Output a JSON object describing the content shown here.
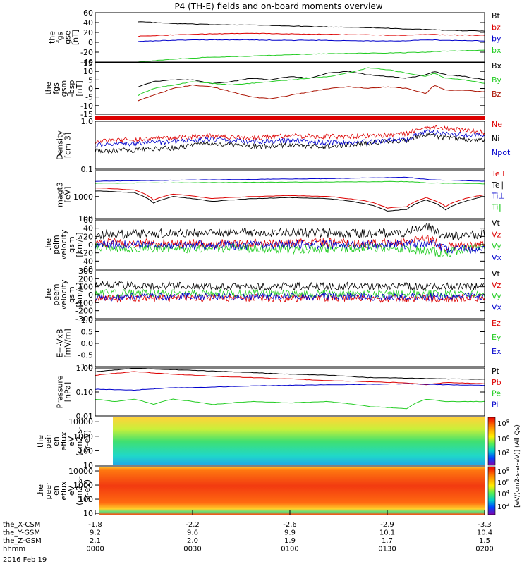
{
  "title": "P4 (TH-E) fields and on-board moments overview",
  "date_label": "2016 Feb 19",
  "colorbar_label": "[eV/(cm2-s-sr-eV)] (All Qs)",
  "colorbar_ticks": [
    "10^8",
    "10^6",
    "10^4",
    "10^2"
  ],
  "colors": {
    "black": "#000000",
    "red": "#dd0000",
    "green": "#22cc22",
    "blue": "#0000cc",
    "darkred": "#aa1100"
  },
  "xaxis": {
    "tick_times": [
      "0000",
      "0030",
      "0100",
      "0130",
      "0200"
    ],
    "rows": [
      {
        "label": "the_X-CSM",
        "values": [
          "-1.8",
          "-2.2",
          "-2.6",
          "-2.9",
          "-3.3"
        ]
      },
      {
        "label": "the_Y-GSM",
        "values": [
          "9.2",
          "9.6",
          "9.9",
          "10.1",
          "10.4"
        ]
      },
      {
        "label": "the_Z-GSM",
        "values": [
          "2.1",
          "2.0",
          "1.9",
          "1.7",
          "1.5"
        ]
      },
      {
        "label": "hhmm",
        "values": [
          "0000",
          "0030",
          "0100",
          "0130",
          "0200"
        ]
      }
    ]
  },
  "chart_data": [
    {
      "type": "line",
      "ylabel": [
        "the",
        "fgs",
        "gse",
        "[nT]"
      ],
      "ylim": [
        -40,
        60
      ],
      "yticks": [
        "60",
        "40",
        "20",
        "0",
        "-20",
        "-40"
      ],
      "legend": [
        "Bt",
        "bz",
        "by",
        "bx"
      ],
      "series": [
        {
          "name": "Bt",
          "color": "black",
          "x": [
            0.11,
            0.2,
            0.3,
            0.4,
            0.5,
            0.6,
            0.7,
            0.8,
            0.85,
            0.9,
            1.0
          ],
          "y": [
            42,
            38,
            36,
            35,
            33,
            31,
            30,
            27,
            26,
            24,
            23
          ]
        },
        {
          "name": "bz",
          "color": "red",
          "x": [
            0.11,
            0.2,
            0.3,
            0.4,
            0.5,
            0.6,
            0.7,
            0.8,
            0.85,
            0.9,
            1.0
          ],
          "y": [
            12,
            15,
            17,
            18,
            17,
            16,
            15,
            14,
            16,
            15,
            14
          ]
        },
        {
          "name": "by",
          "color": "blue",
          "x": [
            0.11,
            0.2,
            0.3,
            0.4,
            0.5,
            0.6,
            0.7,
            0.8,
            0.85,
            0.9,
            1.0
          ],
          "y": [
            2,
            4,
            5,
            5,
            4,
            4,
            3,
            3,
            5,
            4,
            3
          ]
        },
        {
          "name": "bx",
          "color": "green",
          "x": [
            0.11,
            0.2,
            0.3,
            0.4,
            0.5,
            0.6,
            0.7,
            0.8,
            0.85,
            0.9,
            1.0
          ],
          "y": [
            -40,
            -34,
            -30,
            -28,
            -25,
            -23,
            -22,
            -21,
            -20,
            -18,
            -16
          ]
        }
      ]
    },
    {
      "type": "line",
      "ylabel": [
        "the",
        "fgs",
        "gsm",
        "-bsp",
        "[nT]"
      ],
      "ylim": [
        -15,
        15
      ],
      "yticks": [
        "15",
        "10",
        "5",
        "0",
        "-5",
        "-10",
        "-15"
      ],
      "legend": [
        "Bx",
        "By",
        "Bz"
      ],
      "series": [
        {
          "name": "Bx",
          "color": "black",
          "x": [
            0.11,
            0.15,
            0.2,
            0.25,
            0.3,
            0.35,
            0.4,
            0.45,
            0.5,
            0.55,
            0.6,
            0.65,
            0.7,
            0.75,
            0.8,
            0.85,
            0.87,
            0.9,
            0.95,
            1.0
          ],
          "y": [
            1,
            4,
            5,
            5,
            3,
            4,
            6,
            5,
            7,
            6,
            9,
            10,
            8,
            7,
            6,
            8,
            10,
            8,
            7,
            5
          ]
        },
        {
          "name": "By",
          "color": "green",
          "x": [
            0.11,
            0.15,
            0.2,
            0.25,
            0.3,
            0.35,
            0.4,
            0.45,
            0.5,
            0.55,
            0.6,
            0.65,
            0.7,
            0.75,
            0.8,
            0.85,
            0.87,
            0.9,
            0.95,
            1.0
          ],
          "y": [
            -4,
            0,
            2,
            4,
            3,
            2,
            3,
            4,
            5,
            6,
            7,
            9,
            12,
            11,
            9,
            7,
            9,
            6,
            5,
            3
          ]
        },
        {
          "name": "Bz",
          "color": "darkred",
          "x": [
            0.11,
            0.15,
            0.2,
            0.25,
            0.3,
            0.35,
            0.4,
            0.45,
            0.5,
            0.55,
            0.6,
            0.65,
            0.7,
            0.75,
            0.8,
            0.85,
            0.87,
            0.9,
            0.95,
            1.0
          ],
          "y": [
            -7,
            -4,
            0,
            2,
            1,
            -2,
            -5,
            -6,
            -4,
            -2,
            0,
            1,
            0,
            1,
            0,
            -3,
            2,
            -1,
            -1,
            -2
          ]
        }
      ]
    },
    {
      "type": "line",
      "ylabel": [
        "Density",
        "[cm-3]"
      ],
      "yscale": "log",
      "ylim": [
        0.1,
        1.0
      ],
      "yticks": [
        "1.0",
        "0.1"
      ],
      "legend": [
        "Ne",
        "Ni",
        "Npot"
      ],
      "series": [
        {
          "name": "Ne",
          "color": "red",
          "x": [
            0.0,
            0.1,
            0.2,
            0.3,
            0.4,
            0.5,
            0.6,
            0.7,
            0.8,
            0.85,
            0.9,
            1.0
          ],
          "y": [
            0.38,
            0.42,
            0.45,
            0.5,
            0.45,
            0.5,
            0.48,
            0.5,
            0.55,
            0.75,
            0.7,
            0.6
          ]
        },
        {
          "name": "Ni",
          "color": "black",
          "x": [
            0.0,
            0.1,
            0.2,
            0.3,
            0.4,
            0.5,
            0.6,
            0.7,
            0.8,
            0.85,
            0.9,
            1.0
          ],
          "y": [
            0.25,
            0.25,
            0.28,
            0.35,
            0.3,
            0.32,
            0.3,
            0.35,
            0.4,
            0.55,
            0.45,
            0.4
          ]
        },
        {
          "name": "Npot",
          "color": "blue",
          "x": [
            0.0,
            0.1,
            0.2,
            0.3,
            0.4,
            0.5,
            0.6,
            0.7,
            0.8,
            0.85,
            0.9,
            1.0
          ],
          "y": [
            0.32,
            0.35,
            0.38,
            0.42,
            0.38,
            0.4,
            0.36,
            0.38,
            0.42,
            0.6,
            0.55,
            0.5
          ]
        }
      ]
    },
    {
      "type": "line",
      "ylabel": [
        "magt3",
        "[eV]"
      ],
      "yscale": "log",
      "ylim": [
        100,
        15000
      ],
      "yticks": [
        "1000",
        "100"
      ],
      "legend": [
        "Te⊥",
        "Te∥",
        "Ti⊥",
        "Ti∥"
      ],
      "series": [
        {
          "name": "Te⊥",
          "color": "red",
          "x": [
            0.0,
            0.1,
            0.15,
            0.2,
            0.3,
            0.4,
            0.5,
            0.6,
            0.7,
            0.75,
            0.8,
            0.85,
            0.9,
            0.95,
            1.0
          ],
          "y": [
            2500,
            2000,
            700,
            1300,
            800,
            1000,
            1100,
            1000,
            600,
            300,
            350,
            900,
            350,
            800,
            1200
          ]
        },
        {
          "name": "Te∥",
          "color": "black",
          "x": [
            0.0,
            0.1,
            0.15,
            0.2,
            0.3,
            0.4,
            0.5,
            0.6,
            0.7,
            0.75,
            0.8,
            0.85,
            0.9,
            0.95,
            1.0
          ],
          "y": [
            1800,
            1500,
            500,
            1000,
            600,
            800,
            900,
            800,
            450,
            220,
            260,
            700,
            250,
            600,
            1000
          ]
        },
        {
          "name": "Ti⊥",
          "color": "blue",
          "x": [
            0.0,
            0.2,
            0.4,
            0.6,
            0.8,
            0.85,
            0.9,
            1.0
          ],
          "y": [
            5000,
            5500,
            6000,
            6500,
            7500,
            6000,
            5500,
            5000
          ]
        },
        {
          "name": "Ti∥",
          "color": "green",
          "x": [
            0.0,
            0.2,
            0.4,
            0.6,
            0.8,
            0.85,
            0.9,
            1.0
          ],
          "y": [
            4000,
            4200,
            4400,
            4600,
            4800,
            4200,
            4000,
            3800
          ]
        }
      ]
    },
    {
      "type": "line",
      "ylabel": [
        "the",
        "peim",
        "velocity",
        "gsm",
        "[km/s]"
      ],
      "ylim": [
        -60,
        60
      ],
      "yticks": [
        "60",
        "40",
        "20",
        "0",
        "-20",
        "-40",
        "-60"
      ],
      "legend": [
        "Vt",
        "Vz",
        "Vy",
        "Vx"
      ],
      "series": [
        {
          "name": "Vt",
          "color": "black",
          "x": [
            0.0,
            0.2,
            0.4,
            0.5,
            0.6,
            0.7,
            0.8,
            0.85,
            0.9,
            1.0
          ],
          "y": [
            25,
            28,
            30,
            30,
            28,
            27,
            30,
            45,
            20,
            25
          ]
        },
        {
          "name": "Vz",
          "color": "red",
          "x": [
            0.0,
            0.2,
            0.4,
            0.5,
            0.6,
            0.7,
            0.8,
            0.85,
            0.9,
            1.0
          ],
          "y": [
            5,
            3,
            2,
            4,
            5,
            3,
            5,
            15,
            -5,
            0
          ]
        },
        {
          "name": "Vy",
          "color": "green",
          "x": [
            0.0,
            0.2,
            0.4,
            0.5,
            0.6,
            0.7,
            0.8,
            0.85,
            0.9,
            1.0
          ],
          "y": [
            -5,
            -10,
            -8,
            -12,
            -10,
            -8,
            -10,
            -15,
            -20,
            -5
          ]
        },
        {
          "name": "Vx",
          "color": "blue",
          "x": [
            0.0,
            0.2,
            0.4,
            0.5,
            0.6,
            0.7,
            0.8,
            0.85,
            0.9,
            1.0
          ],
          "y": [
            0,
            0,
            -2,
            0,
            0,
            0,
            0,
            5,
            -10,
            -10
          ]
        }
      ]
    },
    {
      "type": "line",
      "ylabel": [
        "the",
        "peem",
        "velocity",
        "gsm",
        "[km/s]"
      ],
      "ylim": [
        -300,
        300
      ],
      "yticks": [
        "300",
        "200",
        "100",
        "0",
        "-100",
        "-200",
        "-300"
      ],
      "legend": [
        "Vt",
        "Vz",
        "Vy",
        "Vx"
      ],
      "series": [
        {
          "name": "Vt",
          "color": "black",
          "x": [
            0.0,
            0.2,
            0.4,
            0.6,
            0.8,
            1.0
          ],
          "y": [
            120,
            110,
            100,
            110,
            105,
            100
          ]
        },
        {
          "name": "Vz",
          "color": "red",
          "x": [
            0.0,
            0.2,
            0.4,
            0.6,
            0.8,
            1.0
          ],
          "y": [
            -50,
            -40,
            -45,
            -40,
            -50,
            -40
          ]
        },
        {
          "name": "Vy",
          "color": "green",
          "x": [
            0.0,
            0.2,
            0.4,
            0.6,
            0.8,
            1.0
          ],
          "y": [
            20,
            15,
            20,
            10,
            15,
            10
          ]
        },
        {
          "name": "Vx",
          "color": "blue",
          "x": [
            0.0,
            0.2,
            0.4,
            0.6,
            0.8,
            1.0
          ],
          "y": [
            -30,
            -20,
            -25,
            -20,
            -30,
            -20
          ]
        }
      ]
    },
    {
      "type": "line",
      "ylabel": [
        "E=-VxB",
        "[mV/m]"
      ],
      "ylim": [
        -1.0,
        1.0
      ],
      "yticks": [
        "1.0",
        "0.5",
        "0.0",
        "-0.5",
        "-1.0"
      ],
      "legend": [
        "Ez",
        "Ey",
        "Ex"
      ],
      "series": []
    },
    {
      "type": "line",
      "ylabel": [
        "Pressure",
        "[nPa]"
      ],
      "yscale": "log",
      "ylim": [
        0.01,
        1.0
      ],
      "yticks": [
        "1.00",
        "0.10",
        "0.01"
      ],
      "legend": [
        "Pt",
        "Pb",
        "Pe",
        "Pi"
      ],
      "series": [
        {
          "name": "Pt",
          "color": "black",
          "x": [
            0.0,
            0.1,
            0.2,
            0.3,
            0.4,
            0.5,
            0.6,
            0.7,
            0.8,
            0.9,
            1.0
          ],
          "y": [
            0.7,
            0.95,
            0.85,
            0.75,
            0.65,
            0.55,
            0.5,
            0.4,
            0.38,
            0.35,
            0.34
          ]
        },
        {
          "name": "Pb",
          "color": "red",
          "x": [
            0.0,
            0.1,
            0.2,
            0.3,
            0.4,
            0.5,
            0.6,
            0.7,
            0.8,
            0.85,
            0.9,
            1.0
          ],
          "y": [
            0.5,
            0.7,
            0.55,
            0.45,
            0.4,
            0.35,
            0.3,
            0.27,
            0.24,
            0.2,
            0.25,
            0.22
          ]
        },
        {
          "name": "Pe",
          "color": "green",
          "x": [
            0.0,
            0.05,
            0.1,
            0.15,
            0.2,
            0.3,
            0.4,
            0.5,
            0.6,
            0.7,
            0.8,
            0.85,
            0.9,
            1.0
          ],
          "y": [
            0.05,
            0.04,
            0.05,
            0.03,
            0.05,
            0.03,
            0.04,
            0.035,
            0.04,
            0.025,
            0.02,
            0.05,
            0.04,
            0.04
          ]
        },
        {
          "name": "Pi",
          "color": "blue",
          "x": [
            0.0,
            0.1,
            0.2,
            0.3,
            0.4,
            0.5,
            0.6,
            0.7,
            0.8,
            0.9,
            1.0
          ],
          "y": [
            0.13,
            0.12,
            0.15,
            0.16,
            0.18,
            0.19,
            0.2,
            0.21,
            0.22,
            0.2,
            0.19
          ]
        }
      ]
    },
    {
      "type": "heatmap",
      "ylabel": [
        "the",
        "peir",
        "en",
        "eflux",
        "eV",
        "(cm2-s-",
        "sr-eV)"
      ],
      "yscale": "log",
      "ylim": [
        10,
        20000
      ],
      "yticks": [
        "10000",
        "1000",
        "100",
        "10"
      ]
    },
    {
      "type": "heatmap",
      "ylabel": [
        "the",
        "peer",
        "en",
        "eflux",
        "eV",
        "(cm2-s-",
        "sr-eV)"
      ],
      "yscale": "log",
      "ylim": [
        8,
        20000
      ],
      "yticks": [
        "10000",
        "1000",
        "100",
        "10"
      ]
    }
  ]
}
